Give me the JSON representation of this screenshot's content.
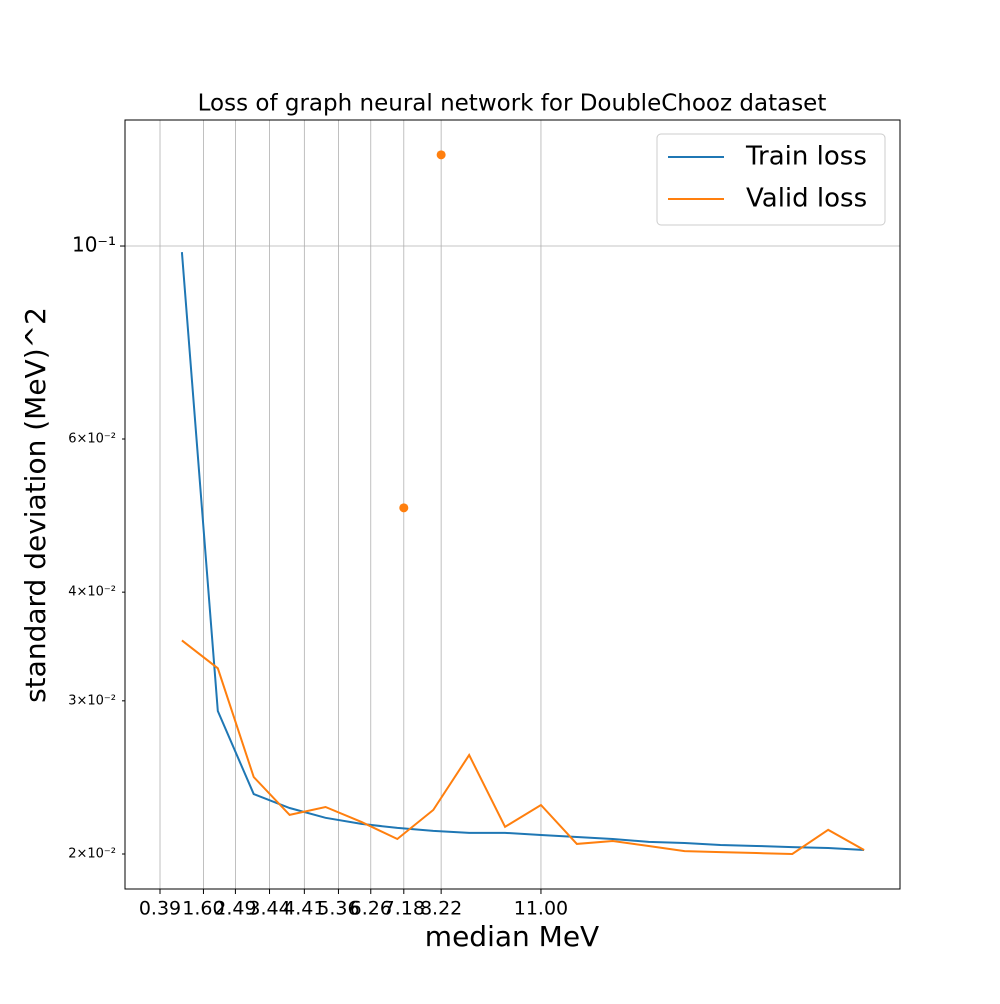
{
  "chart_data": {
    "type": "line",
    "title": "Loss of graph neural network for DoubleChooz dataset",
    "x_label": "median MeV",
    "y_label": "standard deviation (MeV)^2",
    "x": [
      1,
      2,
      3,
      4,
      5,
      6,
      7,
      8,
      9,
      10,
      11,
      12,
      13,
      14,
      15,
      16,
      17,
      18,
      19,
      20
    ],
    "series": [
      {
        "name": "Train loss",
        "color": "#1f77b4",
        "values": [
          0.0984,
          0.0292,
          0.02344,
          0.02259,
          0.02201,
          0.02166,
          0.02143,
          0.02126,
          0.02115,
          0.02115,
          0.02103,
          0.02092,
          0.02081,
          0.02065,
          0.02059,
          0.02048,
          0.02043,
          0.02037,
          0.02032,
          0.02021
        ]
      },
      {
        "name": "Valid loss",
        "color": "#ff7f0e",
        "values": [
          0.0352,
          0.0327,
          0.02452,
          0.02218,
          0.02265,
          0.02177,
          0.02081,
          0.02247,
          0.02599,
          0.02149,
          0.02277,
          0.02054,
          0.0207,
          0.02043,
          0.02015,
          0.0201,
          0.02005,
          0.02,
          0.02132,
          0.02021
        ]
      }
    ],
    "markers": {
      "color": "#ff7f0e",
      "x": [
        7.18,
        8.22
      ],
      "values": [
        0.05,
        0.1273
      ]
    },
    "xlim": [
      -0.585,
      21.0
    ],
    "xticks": [
      0.39,
      {
        "value": 1.6,
        "label": "1.60"
      },
      2.49,
      3.44,
      4.41,
      5.36,
      6.26,
      7.18,
      8.22,
      {
        "value": 11,
        "label": "11.00"
      }
    ],
    "ylim": [
      0.01823,
      0.1396
    ],
    "yscale": "log",
    "yticks": [
      {
        "value": 0.02,
        "label": "2×10⁻²"
      },
      {
        "value": 0.03,
        "label": "3×10⁻²"
      },
      {
        "value": 0.04,
        "label": "4×10⁻²"
      },
      {
        "value": 0.06,
        "label": "6×10⁻²"
      },
      {
        "value": 0.1,
        "label": "10⁻¹"
      }
    ],
    "grid": true,
    "legend": "upper right"
  }
}
